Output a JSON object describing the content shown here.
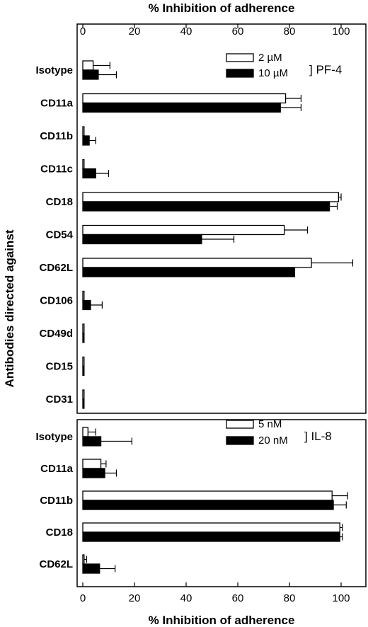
{
  "chart_data": {
    "type": "bar",
    "orientation": "horizontal",
    "xlabel_top": "% Inhibition of adherence",
    "xlabel_bottom": "% Inhibition of adherence",
    "ylabel": "Antibodies directed against",
    "xlim": [
      0,
      105
    ],
    "xticks": [
      "0",
      "20",
      "40",
      "60",
      "80",
      "100"
    ],
    "colors": {
      "open": "#ffffff",
      "filled": "#000000",
      "stroke": "#000000"
    },
    "panels": [
      {
        "group_label": "] PF-4",
        "categories": [
          "Isotype",
          "CD11a",
          "CD11b",
          "CD11c",
          "CD18",
          "CD54",
          "CD62L",
          "CD106",
          "CD49d",
          "CD15",
          "CD31"
        ],
        "series": [
          {
            "name": "2 µM",
            "fill": "open",
            "values": [
              4,
              78.5,
              0.5,
              0.5,
              99,
              78,
              88.5,
              0.5,
              0.5,
              0.5,
              0.5
            ],
            "errors": [
              6.5,
              6,
              0,
              0,
              1,
              9,
              16,
              0,
              0,
              0,
              0
            ]
          },
          {
            "name": "10 µM",
            "fill": "filled",
            "values": [
              6,
              76.5,
              2.5,
              5,
              95.5,
              46,
              82,
              3,
              0.5,
              0.5,
              0.5
            ],
            "errors": [
              7,
              8,
              2.5,
              5,
              3,
              12.5,
              0,
              4.5,
              0,
              0,
              0
            ]
          }
        ]
      },
      {
        "group_label": "] IL-8",
        "categories": [
          "Isotype",
          "CD11a",
          "CD11b",
          "CD18",
          "CD62L"
        ],
        "series": [
          {
            "name": "5 nM",
            "fill": "open",
            "values": [
              2,
              7,
              96.5,
              99.5,
              0.5
            ],
            "errors": [
              3,
              2,
              6,
              1,
              1
            ]
          },
          {
            "name": "20 nM",
            "fill": "filled",
            "values": [
              7,
              8.5,
              97,
              99.5,
              6.5
            ],
            "errors": [
              12,
              4.5,
              5,
              1,
              6
            ]
          }
        ]
      }
    ]
  }
}
